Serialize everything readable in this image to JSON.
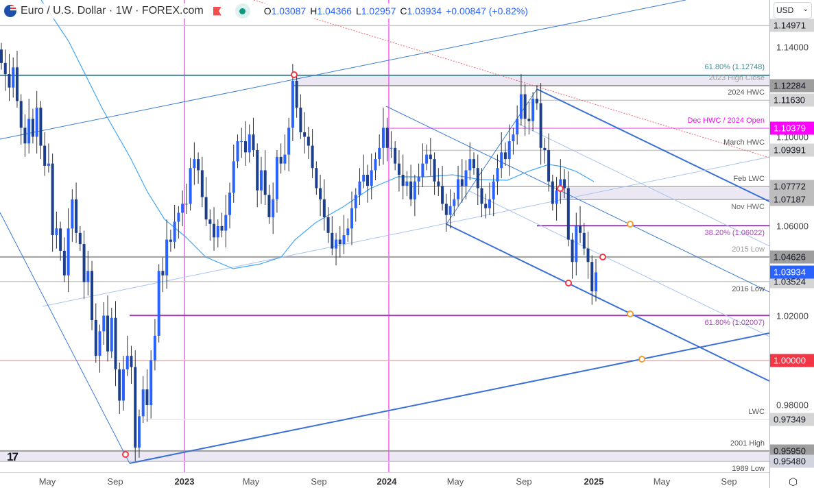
{
  "header": {
    "symbol_title": "Euro / U.S. Dollar · 1W · FOREX.com",
    "open_label": "O",
    "open": "1.03087",
    "high_label": "H",
    "high": "1.04366",
    "low_label": "L",
    "low": "1.02957",
    "close_label": "C",
    "close": "1.03934",
    "change": "+0.00847 (+0.82%)",
    "flag_icon": "eu-us-flag-icon",
    "market_status": "open"
  },
  "currency_selector": {
    "value": "USD"
  },
  "price_axis": {
    "ticks": [
      "1.14000",
      "1.10000",
      "1.06000",
      "1.02000",
      "0.98000"
    ],
    "current_price": "1.03934"
  },
  "time_axis": {
    "labels": [
      {
        "text": "May",
        "year": false
      },
      {
        "text": "Sep",
        "year": false
      },
      {
        "text": "2023",
        "year": true
      },
      {
        "text": "May",
        "year": false
      },
      {
        "text": "Sep",
        "year": false
      },
      {
        "text": "2024",
        "year": true
      },
      {
        "text": "May",
        "year": false
      },
      {
        "text": "Sep",
        "year": false
      },
      {
        "text": "2025",
        "year": true
      },
      {
        "text": "May",
        "year": false
      },
      {
        "text": "Sep",
        "year": false
      }
    ]
  },
  "colors": {
    "up_candle": "#2962ff",
    "down_candle": "#1c3f8c",
    "moving_average": "#42a5f5",
    "trendline": "#3a6fd8",
    "magenta": "#ff00ff",
    "fib": "#9c3bb0",
    "parity": "#f23645"
  },
  "levels": [
    {
      "price": "1.14971",
      "label": "",
      "line": "#c8c8c8",
      "tag_bg": "#d5d5d5",
      "tag_fg": "#131722"
    },
    {
      "price": "1.12748",
      "label": "61.80% (1.12748)",
      "line": "#4a8a96",
      "label_color": "#4a8a96"
    },
    {
      "price": "1.12284",
      "label": "2023 High Close",
      "line": "#9e9e9e",
      "tag_bg": "#9e9e9e",
      "tag_fg": "#131722",
      "label_color": "#a0a0a0"
    },
    {
      "price": "1.11630",
      "label": "2024 HWC",
      "line": "#c8c8c8",
      "tag_bg": "#d5d5d5",
      "tag_fg": "#131722",
      "label_color": "#555"
    },
    {
      "price": "1.10379",
      "label": "Dec HWC / 2024 Open",
      "line": "#ff80ff",
      "tag_bg": "#ff00ff",
      "tag_fg": "#ffffff",
      "label_color": "#ff00ff"
    },
    {
      "price": "1.09391",
      "label": "March HWC",
      "line": "#c8c8c8",
      "tag_bg": "#d5d5d5",
      "tag_fg": "#131722",
      "label_color": "#555"
    },
    {
      "price": "1.07772",
      "label": "Feb LWC",
      "line": "#b0b0b0",
      "tag_bg": "#bdbdbd",
      "tag_fg": "#131722",
      "label_color": "#555"
    },
    {
      "price": "1.07187",
      "label": "Nov HWC",
      "line": "#b0b0b0",
      "tag_bg": "#bdbdbd",
      "tag_fg": "#131722",
      "label_color": "#666"
    },
    {
      "price": "1.06022",
      "label": "38.20% (1.06022)",
      "line": "#9c3bb0",
      "label_color": "#a648b8"
    },
    {
      "price": "1.04626",
      "label": "2015 Low",
      "line": "#9e9e9e",
      "tag_bg": "#9e9e9e",
      "tag_fg": "#131722",
      "label_color": "#999"
    },
    {
      "price": "1.03524",
      "label": "2016 Low",
      "line": "#cccccc",
      "tag_bg": "#d5d5d5",
      "tag_fg": "#131722",
      "label_color": "#555"
    },
    {
      "price": "1.02007",
      "label": "61.80% (1.02007)",
      "line": "#9c3bb0",
      "label_color": "#a648b8"
    },
    {
      "price": "1.00000",
      "label": "",
      "line": "#f7a8ae",
      "tag_bg": "#f23645",
      "tag_fg": "#ffffff"
    },
    {
      "price": "0.97349",
      "label": "LWC",
      "line": "#e6e6e6",
      "tag_bg": "#d5d5d5",
      "tag_fg": "#131722",
      "label_color": "#555"
    },
    {
      "price": "0.95950",
      "label": "2001 High",
      "line": "#9e9e9e",
      "tag_bg": "#9e9e9e",
      "tag_fg": "#131722",
      "label_color": "#555"
    },
    {
      "price": "0.95480",
      "label": "1989 Low",
      "line": "#c8c8d8",
      "tag_bg": "#d3d5de",
      "tag_fg": "#131722",
      "label_color": "#555"
    }
  ],
  "chart_data": {
    "type": "candlestick",
    "interval": "1W",
    "x_range": [
      "2022-01",
      "2025-10"
    ],
    "y_range": [
      0.948,
      1.151
    ],
    "closes": [
      1.133,
      1.128,
      1.122,
      1.131,
      1.116,
      1.104,
      1.097,
      1.108,
      1.1,
      1.113,
      1.096,
      1.087,
      1.088,
      1.056,
      1.059,
      1.049,
      1.038,
      1.059,
      1.072,
      1.057,
      1.052,
      1.035,
      1.04,
      1.018,
      1.002,
      1.013,
      1.02,
      1.004,
      1.019,
      0.996,
      0.982,
      0.996,
      1.002,
      0.997,
      0.961,
      0.975,
      0.987,
      0.98,
      1.0,
      1.011,
      1.04,
      1.038,
      1.054,
      1.053,
      1.062,
      1.066,
      1.07,
      1.07,
      1.086,
      1.09,
      1.085,
      1.073,
      1.063,
      1.061,
      1.055,
      1.06,
      1.058,
      1.065,
      1.075,
      1.089,
      1.098,
      1.098,
      1.093,
      1.101,
      1.094,
      1.076,
      1.085,
      1.074,
      1.064,
      1.072,
      1.091,
      1.088,
      1.092,
      1.104,
      1.125,
      1.113,
      1.102,
      1.1,
      1.096,
      1.086,
      1.077,
      1.072,
      1.064,
      1.057,
      1.05,
      1.054,
      1.052,
      1.056,
      1.059,
      1.068,
      1.074,
      1.08,
      1.083,
      1.078,
      1.085,
      1.09,
      1.095,
      1.104,
      1.095,
      1.095,
      1.088,
      1.083,
      1.078,
      1.08,
      1.072,
      1.08,
      1.082,
      1.088,
      1.092,
      1.09,
      1.08,
      1.078,
      1.07,
      1.065,
      1.069,
      1.072,
      1.081,
      1.078,
      1.085,
      1.09,
      1.086,
      1.077,
      1.07,
      1.068,
      1.072,
      1.08,
      1.086,
      1.093,
      1.09,
      1.098,
      1.101,
      1.108,
      1.119,
      1.108,
      1.107,
      1.117,
      1.115,
      1.095,
      1.094,
      1.08,
      1.07,
      1.076,
      1.081,
      1.077,
      1.054,
      1.044,
      1.06,
      1.057,
      1.05,
      1.044,
      1.03087,
      1.03934
    ]
  }
}
